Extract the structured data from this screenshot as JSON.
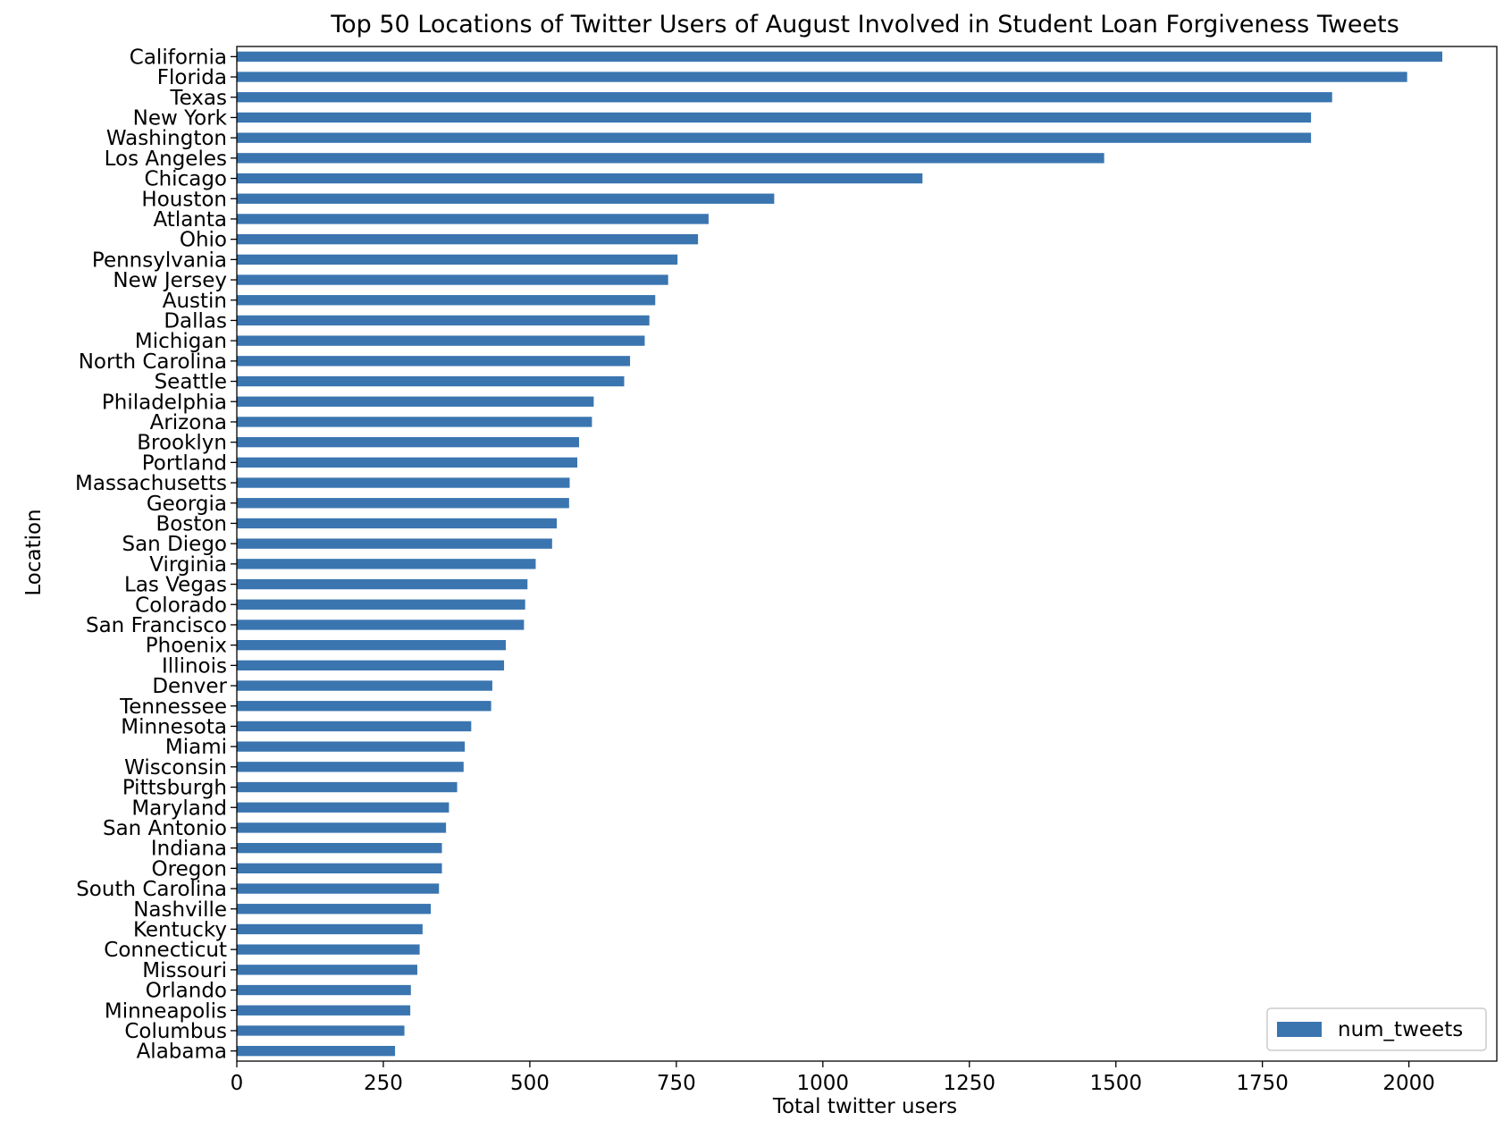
{
  "chart_data": {
    "type": "bar",
    "orientation": "horizontal",
    "title": "Top 50 Locations of Twitter Users of August Involved in Student Loan Forgiveness Tweets",
    "xlabel": "Total twitter users",
    "ylabel": "Location",
    "xlim": [
      0,
      2150
    ],
    "x_ticks": [
      0,
      250,
      500,
      750,
      1000,
      1250,
      1500,
      1750,
      2000
    ],
    "x_tick_labels": [
      "0",
      "250",
      "500",
      "750",
      "1000",
      "1250",
      "1500",
      "1750",
      "2000"
    ],
    "grid": false,
    "legend_position": "lower-right",
    "bar_color": "#3a75b0",
    "categories": [
      "California",
      "Florida",
      "Texas",
      "New York",
      "Washington",
      "Los Angeles",
      "Chicago",
      "Houston",
      "Atlanta",
      "Ohio",
      "Pennsylvania",
      "New Jersey",
      "Austin",
      "Dallas",
      "Michigan",
      "North Carolina",
      "Seattle",
      "Philadelphia",
      "Arizona",
      "Brooklyn",
      "Portland",
      "Massachusetts",
      "Georgia",
      "Boston",
      "San Diego",
      "Virginia",
      "Las Vegas",
      "Colorado",
      "San Francisco",
      "Phoenix",
      "Illinois",
      "Denver",
      "Tennessee",
      "Minnesota",
      "Miami",
      "Wisconsin",
      "Pittsburgh",
      "Maryland",
      "San Antonio",
      "Indiana",
      "Oregon",
      "South Carolina",
      "Nashville",
      "Kentucky",
      "Connecticut",
      "Missouri",
      "Orlando",
      "Minneapolis",
      "Columbus",
      "Alabama"
    ],
    "series": [
      {
        "name": "num_tweets",
        "values": [
          2057,
          1997,
          1869,
          1833,
          1833,
          1480,
          1170,
          917,
          805,
          787,
          752,
          736,
          714,
          704,
          696,
          671,
          661,
          609,
          606,
          584,
          581,
          568,
          567,
          546,
          538,
          510,
          496,
          492,
          490,
          459,
          456,
          436,
          434,
          400,
          389,
          387,
          376,
          362,
          357,
          350,
          350,
          345,
          331,
          317,
          312,
          308,
          297,
          296,
          286,
          270
        ]
      }
    ]
  }
}
